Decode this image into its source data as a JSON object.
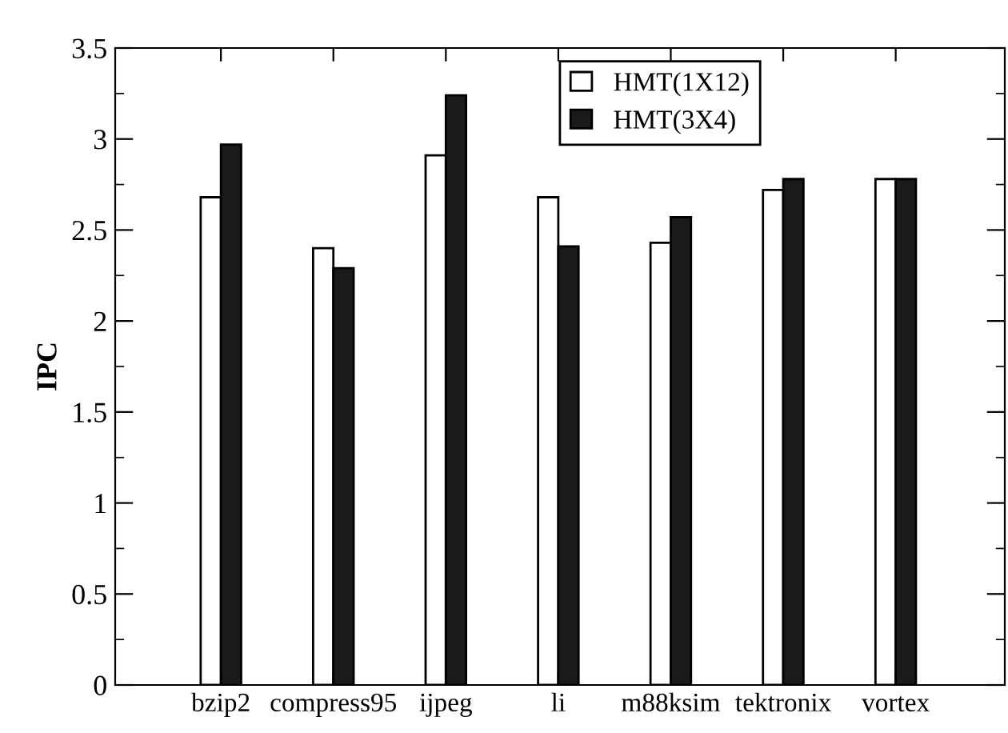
{
  "chart_data": {
    "type": "bar",
    "ylabel": "IPC",
    "categories": [
      "bzip2",
      "compress95",
      "ijpeg",
      "li",
      "m88ksim",
      "tektronix",
      "vortex"
    ],
    "series": [
      {
        "name": "HMT(1X12)",
        "color": "#ffffff",
        "values": [
          2.68,
          2.4,
          2.91,
          2.68,
          2.43,
          2.72,
          2.78
        ]
      },
      {
        "name": "HMT(3X4)",
        "color": "#1a1a1a",
        "values": [
          2.97,
          2.29,
          3.24,
          2.41,
          2.57,
          2.78,
          2.78
        ]
      }
    ],
    "ylim": [
      0,
      3.5
    ],
    "yticks": [
      0,
      {
        "value": 0.5,
        "label": "0.5"
      },
      1,
      {
        "value": 1.5,
        "label": "1.5"
      },
      2,
      {
        "value": 2.5,
        "label": "2.5"
      },
      3,
      {
        "value": 3.5,
        "label": "3.5"
      }
    ],
    "grid": false,
    "legend": "top right"
  }
}
